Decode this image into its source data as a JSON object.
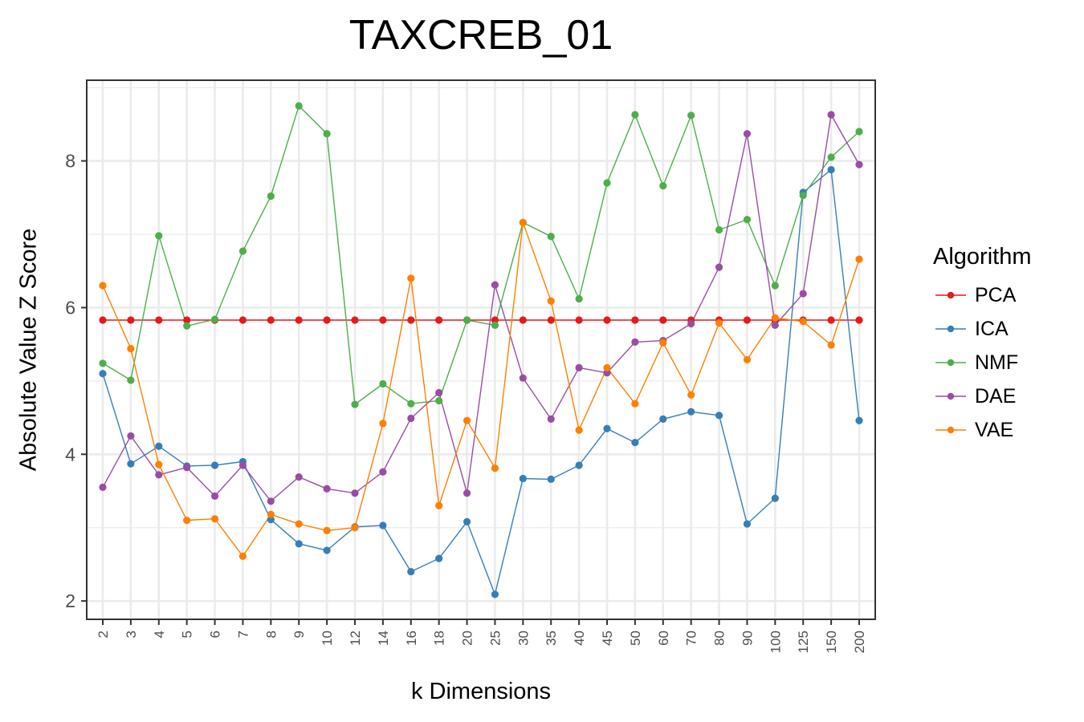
{
  "chart_data": {
    "type": "line",
    "title": "TAXCREB_01",
    "xlabel": "k Dimensions",
    "ylabel": "Absolute Value Z Score",
    "legend_title": "Algorithm",
    "legend_position": "right",
    "grid": true,
    "categories": [
      "2",
      "3",
      "4",
      "5",
      "6",
      "7",
      "8",
      "9",
      "10",
      "12",
      "14",
      "16",
      "18",
      "20",
      "25",
      "30",
      "35",
      "40",
      "45",
      "50",
      "60",
      "70",
      "80",
      "90",
      "100",
      "125",
      "150",
      "200"
    ],
    "yticks": [
      2,
      4,
      6,
      8
    ],
    "ylim": [
      1.75,
      9.1
    ],
    "series": [
      {
        "name": "PCA",
        "color": "#e41a1c",
        "values": [
          5.83,
          5.83,
          5.83,
          5.83,
          5.83,
          5.83,
          5.83,
          5.83,
          5.83,
          5.83,
          5.83,
          5.83,
          5.83,
          5.83,
          5.83,
          5.83,
          5.83,
          5.83,
          5.83,
          5.83,
          5.83,
          5.83,
          5.83,
          5.83,
          5.83,
          5.83,
          5.83,
          5.83
        ]
      },
      {
        "name": "ICA",
        "color": "#377eb8",
        "values": [
          5.1,
          3.87,
          4.11,
          3.84,
          3.85,
          3.9,
          3.11,
          2.78,
          2.69,
          3.01,
          3.03,
          2.4,
          2.58,
          3.08,
          2.09,
          3.67,
          3.66,
          3.85,
          4.35,
          4.16,
          4.48,
          4.58,
          4.53,
          3.05,
          3.4,
          7.57,
          7.88,
          4.46
        ]
      },
      {
        "name": "NMF",
        "color": "#4daf4a",
        "values": [
          5.24,
          5.01,
          6.98,
          5.75,
          5.84,
          6.77,
          7.52,
          8.75,
          8.37,
          4.68,
          4.96,
          4.69,
          4.73,
          5.83,
          5.76,
          7.16,
          6.97,
          6.12,
          7.7,
          8.63,
          7.66,
          8.62,
          7.06,
          7.2,
          6.3,
          7.53,
          8.05,
          8.4
        ]
      },
      {
        "name": "DAE",
        "color": "#984ea3",
        "values": [
          3.55,
          4.25,
          3.72,
          3.82,
          3.43,
          3.85,
          3.36,
          3.69,
          3.53,
          3.47,
          3.76,
          4.49,
          4.84,
          3.47,
          6.31,
          5.04,
          4.48,
          5.18,
          5.11,
          5.53,
          5.55,
          5.78,
          6.55,
          8.37,
          5.76,
          6.19,
          8.63,
          7.95
        ]
      },
      {
        "name": "VAE",
        "color": "#ff7f00",
        "values": [
          6.3,
          5.44,
          3.86,
          3.1,
          3.12,
          2.61,
          3.18,
          3.05,
          2.96,
          3.0,
          4.42,
          6.4,
          3.3,
          4.46,
          3.81,
          7.16,
          6.09,
          4.33,
          5.18,
          4.69,
          5.52,
          4.81,
          5.79,
          5.29,
          5.86,
          5.81,
          5.49,
          6.66
        ]
      }
    ]
  }
}
